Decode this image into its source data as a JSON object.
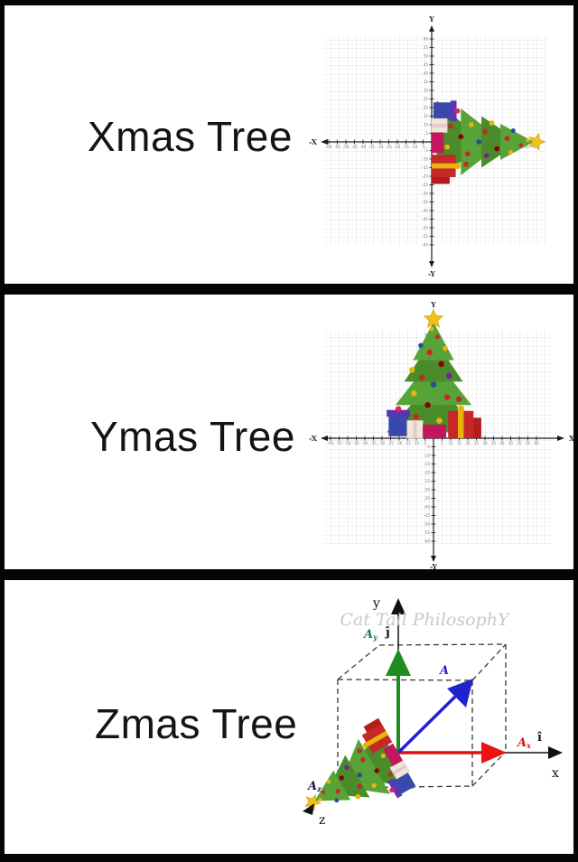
{
  "colors": {
    "background": "#000000",
    "panel": "#ffffff",
    "text": "#141414",
    "grid_line": "#e0e0e0",
    "axis": "#1a1a1a",
    "tree_green_dark": "#4a8c2a",
    "tree_green_light": "#57a337",
    "star_gold": "#f2c21a",
    "vector_a_blue": "#2222cc",
    "vector_ax_red": "#dd1111",
    "vector_ay_green": "#1f8c1f",
    "ay_label_teal": "#1e7a66",
    "watermark_gray": "#c9c9c9"
  },
  "panels": [
    {
      "label": "Xmas Tree",
      "type": "2d-grid",
      "tree_orientation": "lying along positive x-axis, star at tip pointing right",
      "axis_labels": {
        "top": "Y",
        "bottom": "-Y",
        "left": "-X"
      },
      "x_axis": {
        "min": -60,
        "max": 60,
        "step": 5
      },
      "y_axis": {
        "min": -60,
        "max": 60,
        "step": 5
      }
    },
    {
      "label": "Ymas Tree",
      "type": "2d-grid",
      "tree_orientation": "upright along positive y-axis, star at top",
      "axis_labels": {
        "top": "Y",
        "bottom": "-Y",
        "left": "-X",
        "right": "X"
      },
      "x_axis": {
        "min": -60,
        "max": 60,
        "step": 5
      },
      "y_axis": {
        "min": -60,
        "max": 60,
        "step": 5
      }
    },
    {
      "label": "Zmas Tree",
      "type": "3d-vector-diagram",
      "watermark": "Cat Tail PhilosophY",
      "tree_orientation": "along z-axis pointing toward viewer (down-left), star at tip",
      "axis_labels": {
        "y": "y",
        "x": "x",
        "z": "z"
      },
      "vectors": {
        "a": {
          "label": "A"
        },
        "ax": {
          "base": "A",
          "sub": "x",
          "unit": "î"
        },
        "ay": {
          "base": "A",
          "sub": "y",
          "unit": "ĵ"
        },
        "az": {
          "base": "A",
          "sub": "z"
        }
      }
    }
  ]
}
